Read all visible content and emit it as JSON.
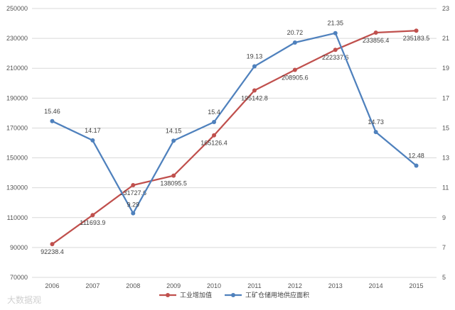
{
  "chart_data": {
    "type": "line",
    "categories": [
      "2006",
      "2007",
      "2008",
      "2009",
      "2010",
      "2011",
      "2012",
      "2013",
      "2014",
      "2015"
    ],
    "y_left": {
      "min": 70000,
      "max": 250000,
      "step": 20000,
      "ticks": [
        "70000",
        "90000",
        "110000",
        "130000",
        "150000",
        "170000",
        "190000",
        "210000",
        "230000",
        "250000"
      ]
    },
    "y_right": {
      "min": 5,
      "max": 23,
      "step": 2,
      "ticks": [
        "5",
        "7",
        "9",
        "11",
        "13",
        "15",
        "17",
        "19",
        "21",
        "23"
      ]
    },
    "grid": true,
    "legend_position": "bottom",
    "series": [
      {
        "name": "工业增加值",
        "axis": "left",
        "color": "#c0504d",
        "values": [
          92238.4,
          111693.9,
          131727.6,
          138095.5,
          165126.4,
          195142.8,
          208905.6,
          222337.6,
          233856.4,
          235183.5
        ],
        "labels": [
          "92238.4",
          "111693.9",
          "131727.6",
          "138095.5",
          "165126.4",
          "195142.8",
          "208905.6",
          "222337.6",
          "233856.4",
          "235183.5"
        ]
      },
      {
        "name": "工矿仓储用地供应面积",
        "axis": "right",
        "color": "#4f81bd",
        "values": [
          15.46,
          14.17,
          9.29,
          14.15,
          15.4,
          19.13,
          20.72,
          21.35,
          14.73,
          12.48
        ],
        "labels": [
          "15.46",
          "14.17",
          "9.29",
          "14.15",
          "15.4",
          "19.13",
          "20.72",
          "21.35",
          "14.73",
          "12.48"
        ]
      }
    ]
  },
  "watermark": "大数据观"
}
